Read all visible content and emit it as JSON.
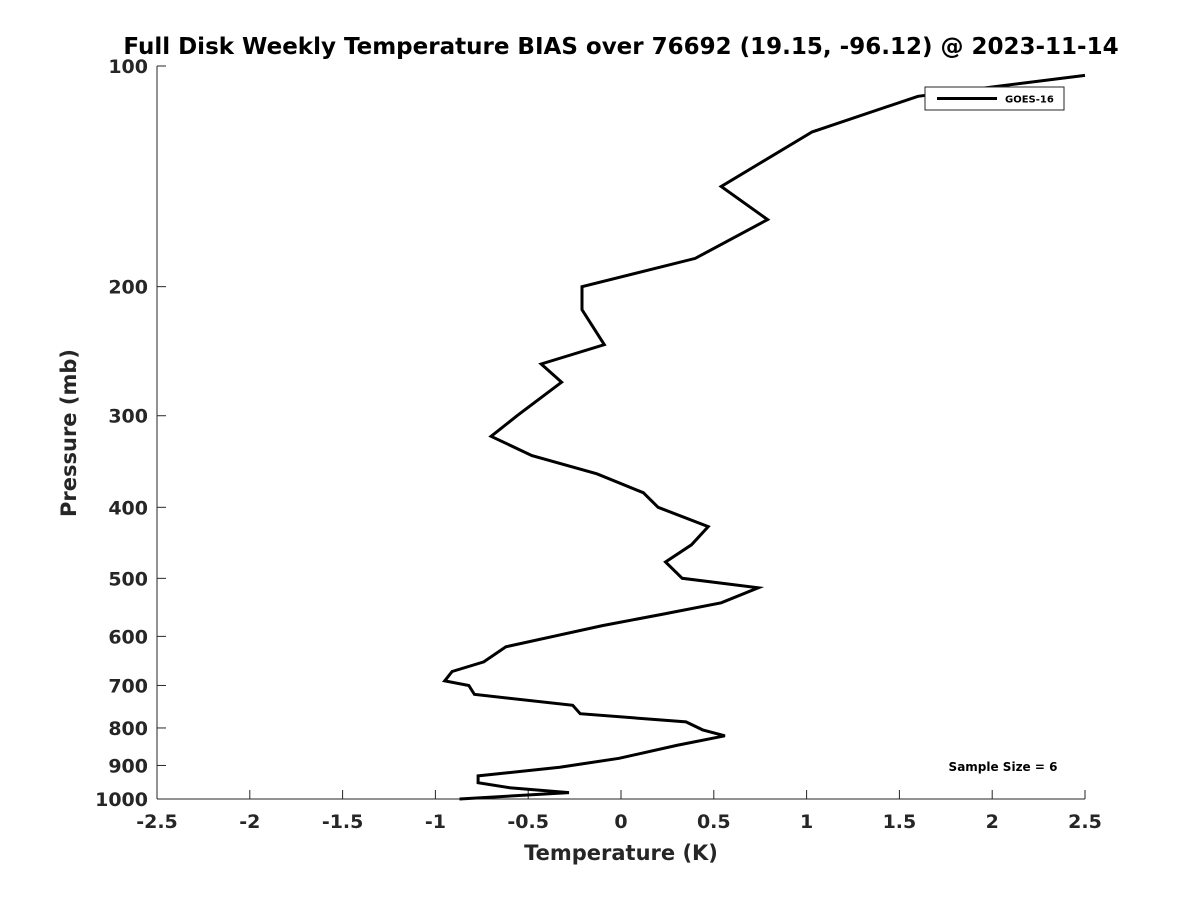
{
  "chart_data": {
    "type": "line",
    "title": "Full Disk Weekly Temperature BIAS over 76692 (19.15, -96.12) @ 2023-11-14",
    "xlabel": "Temperature (K)",
    "ylabel": "Pressure (mb)",
    "xlim": [
      -2.5,
      2.5
    ],
    "ylim": [
      1000,
      100
    ],
    "yscale": "log",
    "y_reversed": true,
    "grid": false,
    "x_ticks": [
      -2.5,
      -2,
      -1.5,
      -1,
      -0.5,
      0,
      0.5,
      1,
      1.5,
      2,
      2.5
    ],
    "x_tick_labels": [
      "-2.5",
      "-2",
      "-1.5",
      "-1",
      "-0.5",
      "0",
      "0.5",
      "1",
      "1.5",
      "2",
      "2.5"
    ],
    "y_ticks": [
      100,
      200,
      300,
      400,
      500,
      600,
      700,
      800,
      900,
      1000
    ],
    "y_tick_labels": [
      "100",
      "200",
      "300",
      "400",
      "500",
      "600",
      "700",
      "800",
      "900",
      "1000"
    ],
    "legend_position": "top-right",
    "line_color": "#000000",
    "series": [
      {
        "name": "GOES-16",
        "points": [
          {
            "x": 2.5,
            "y": 103
          },
          {
            "x": 1.6,
            "y": 110
          },
          {
            "x": 1.03,
            "y": 123
          },
          {
            "x": 0.54,
            "y": 146
          },
          {
            "x": 0.79,
            "y": 162
          },
          {
            "x": 0.4,
            "y": 183
          },
          {
            "x": -0.21,
            "y": 200
          },
          {
            "x": -0.21,
            "y": 215
          },
          {
            "x": -0.09,
            "y": 240
          },
          {
            "x": -0.43,
            "y": 255
          },
          {
            "x": -0.32,
            "y": 270
          },
          {
            "x": -0.56,
            "y": 300
          },
          {
            "x": -0.7,
            "y": 320
          },
          {
            "x": -0.48,
            "y": 340
          },
          {
            "x": -0.13,
            "y": 360
          },
          {
            "x": 0.12,
            "y": 382
          },
          {
            "x": 0.2,
            "y": 400
          },
          {
            "x": 0.47,
            "y": 425
          },
          {
            "x": 0.38,
            "y": 450
          },
          {
            "x": 0.24,
            "y": 475
          },
          {
            "x": 0.33,
            "y": 500
          },
          {
            "x": 0.74,
            "y": 515
          },
          {
            "x": 0.54,
            "y": 540
          },
          {
            "x": 0.22,
            "y": 560
          },
          {
            "x": -0.1,
            "y": 580
          },
          {
            "x": -0.62,
            "y": 620
          },
          {
            "x": -0.74,
            "y": 650
          },
          {
            "x": -0.91,
            "y": 670
          },
          {
            "x": -0.95,
            "y": 690
          },
          {
            "x": -0.82,
            "y": 700
          },
          {
            "x": -0.79,
            "y": 720
          },
          {
            "x": -0.26,
            "y": 745
          },
          {
            "x": -0.22,
            "y": 765
          },
          {
            "x": 0.35,
            "y": 785
          },
          {
            "x": 0.44,
            "y": 805
          },
          {
            "x": 0.56,
            "y": 820
          },
          {
            "x": 0.3,
            "y": 845
          },
          {
            "x": -0.01,
            "y": 880
          },
          {
            "x": -0.33,
            "y": 905
          },
          {
            "x": -0.77,
            "y": 930
          },
          {
            "x": -0.77,
            "y": 950
          },
          {
            "x": -0.6,
            "y": 965
          },
          {
            "x": -0.28,
            "y": 980
          },
          {
            "x": -0.87,
            "y": 1000
          }
        ]
      }
    ],
    "annotations": [
      {
        "text": "Sample Size = 6",
        "position": "bottom-right"
      }
    ]
  }
}
